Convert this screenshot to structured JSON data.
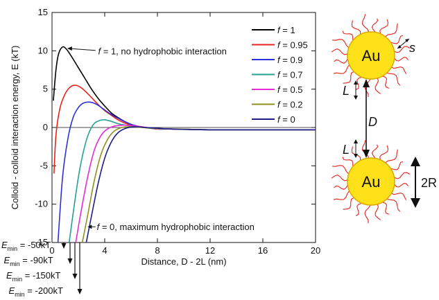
{
  "chart_data": {
    "type": "line",
    "xlabel": "Distance, D - 2L (nm)",
    "ylabel": "Colloid - colloid interaction energy, E (kT)",
    "xlim": [
      0,
      20
    ],
    "ylim": [
      -15,
      15
    ],
    "xticks": [
      0,
      4,
      8,
      12,
      16,
      20
    ],
    "yticks": [
      -15,
      -10,
      -5,
      0,
      5,
      10,
      15
    ],
    "legend_position": "top-right",
    "series": [
      {
        "name": "f = 1",
        "color": "#000000",
        "x": [
          0.1,
          0.3,
          0.5,
          0.8,
          1.1,
          1.5,
          2.0,
          2.5,
          3.0,
          3.5,
          4.0,
          4.5,
          5.0,
          5.5,
          6.0,
          6.5,
          7.0,
          7.5,
          8.0,
          9.0,
          12,
          16,
          20
        ],
        "y": [
          3.5,
          7.5,
          9.6,
          10.5,
          10.2,
          9.2,
          7.8,
          6.4,
          5.0,
          3.8,
          2.8,
          1.9,
          1.3,
          0.8,
          0.4,
          0.1,
          0.0,
          -0.1,
          -0.2,
          -0.2,
          -0.3,
          -0.3,
          -0.3
        ]
      },
      {
        "name": "f = 0.95",
        "color": "#e8221b",
        "x": [
          0.15,
          0.3,
          0.6,
          1.0,
          1.4,
          1.8,
          2.2,
          2.6,
          3.0,
          3.5,
          4.0,
          4.5,
          5.0,
          5.5,
          6.0,
          6.5,
          7.0,
          7.5,
          8.0,
          9.0,
          12,
          16,
          20
        ],
        "y": [
          -6,
          -1,
          2.5,
          4.4,
          5.3,
          5.5,
          5.2,
          4.6,
          3.9,
          3.0,
          2.2,
          1.6,
          1.0,
          0.6,
          0.3,
          0.1,
          0.0,
          -0.1,
          -0.2,
          -0.2,
          -0.3,
          -0.3,
          -0.3
        ]
      },
      {
        "name": "f = 0.9",
        "color": "#2a2fd9",
        "x": [
          0.45,
          0.8,
          1.2,
          1.6,
          2.0,
          2.4,
          2.9,
          3.4,
          3.9,
          4.4,
          5.0,
          5.6,
          6.2,
          7.0,
          8.0,
          9.0,
          12,
          16,
          20
        ],
        "y": [
          -15,
          -6.5,
          -1.5,
          1.3,
          2.6,
          3.2,
          3.3,
          3.0,
          2.4,
          1.8,
          1.2,
          0.7,
          0.3,
          0.0,
          -0.2,
          -0.2,
          -0.3,
          -0.3,
          -0.3
        ]
      },
      {
        "name": "f = 0.7",
        "color": "#1fa390",
        "x": [
          1.3,
          1.7,
          2.1,
          2.6,
          3.1,
          3.6,
          4.0,
          4.5,
          5.0,
          5.6,
          6.3,
          7.0,
          8.0,
          9.0,
          12,
          16,
          20
        ],
        "y": [
          -15,
          -10,
          -5.5,
          -1.7,
          0.3,
          0.9,
          1.0,
          0.8,
          0.5,
          0.3,
          0.1,
          0.0,
          -0.2,
          -0.2,
          -0.3,
          -0.3,
          -0.3
        ]
      },
      {
        "name": "f = 0.5",
        "color": "#e62ad6",
        "x": [
          1.8,
          2.2,
          2.7,
          3.2,
          3.7,
          4.2,
          4.8,
          5.5,
          6.3,
          7.2,
          8.0,
          9.0,
          12,
          16,
          20
        ],
        "y": [
          -15,
          -11,
          -6.5,
          -3.0,
          -1.1,
          -0.2,
          0.2,
          0.3,
          0.2,
          0.0,
          -0.2,
          -0.2,
          -0.3,
          -0.3,
          -0.3
        ]
      },
      {
        "name": "f = 0.2",
        "color": "#8f8f1c",
        "x": [
          2.3,
          2.7,
          3.2,
          3.7,
          4.2,
          4.7,
          5.3,
          6.0,
          6.8,
          7.6,
          8.5,
          9.5,
          12,
          16,
          20
        ],
        "y": [
          -15,
          -11.5,
          -7.0,
          -3.6,
          -1.6,
          -0.5,
          0.0,
          0.1,
          0.0,
          -0.1,
          -0.2,
          -0.2,
          -0.3,
          -0.3,
          -0.3
        ]
      },
      {
        "name": "f = 0",
        "color": "#1c1c8a",
        "x": [
          2.6,
          3.0,
          3.5,
          4.0,
          4.5,
          5.0,
          5.6,
          6.3,
          7.1,
          8.0,
          9.0,
          12,
          16,
          20
        ],
        "y": [
          -15,
          -11.5,
          -7.3,
          -4.0,
          -1.9,
          -0.7,
          -0.1,
          0.1,
          0.0,
          -0.1,
          -0.2,
          -0.3,
          -0.3,
          -0.3
        ]
      }
    ],
    "annotations": [
      {
        "text": "f = 1, no hydrophobic interaction",
        "x": 3.5,
        "y": 10.0
      },
      {
        "text": "f = 0, maximum hydrophobic interaction",
        "x": 3.4,
        "y": -12.9
      }
    ],
    "emin_labels": [
      "-50kT",
      "-90kT",
      "-150kT",
      "-200kT"
    ],
    "emin_symbol": "E",
    "emin_subscript": "min"
  },
  "schematic": {
    "particle_label": "Au",
    "labels": {
      "s": "s",
      "L_top": "L",
      "D": "D",
      "L_bottom": "L",
      "R": "2R"
    },
    "colors": {
      "particle_fill": "#ffe11a",
      "particle_edge": "#d9a900",
      "ligand": "#e8221b"
    }
  }
}
